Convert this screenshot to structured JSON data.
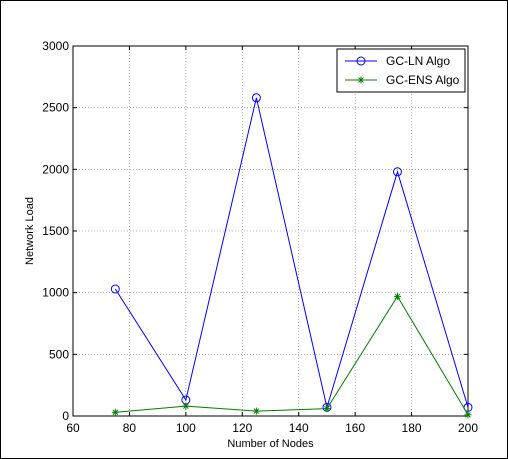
{
  "chart_data": {
    "type": "line",
    "title": "",
    "xlabel": "Number of Nodes",
    "ylabel": "Network Load",
    "xlim": [
      60,
      200
    ],
    "ylim": [
      0,
      3000
    ],
    "xticks": [
      60,
      80,
      100,
      120,
      140,
      160,
      180,
      200
    ],
    "yticks": [
      0,
      500,
      1000,
      1500,
      2000,
      2500,
      3000
    ],
    "grid": true,
    "legend_position": "top-right",
    "x": [
      75,
      100,
      125,
      150,
      175,
      200
    ],
    "series": [
      {
        "name": "GC-LN Algo",
        "color": "#0000ff",
        "marker": "circle",
        "values": [
          1030,
          130,
          2580,
          70,
          1980,
          70
        ]
      },
      {
        "name": "GC-ENS Algo",
        "color": "#008000",
        "marker": "asterisk",
        "values": [
          30,
          80,
          40,
          60,
          970,
          10
        ]
      }
    ]
  }
}
